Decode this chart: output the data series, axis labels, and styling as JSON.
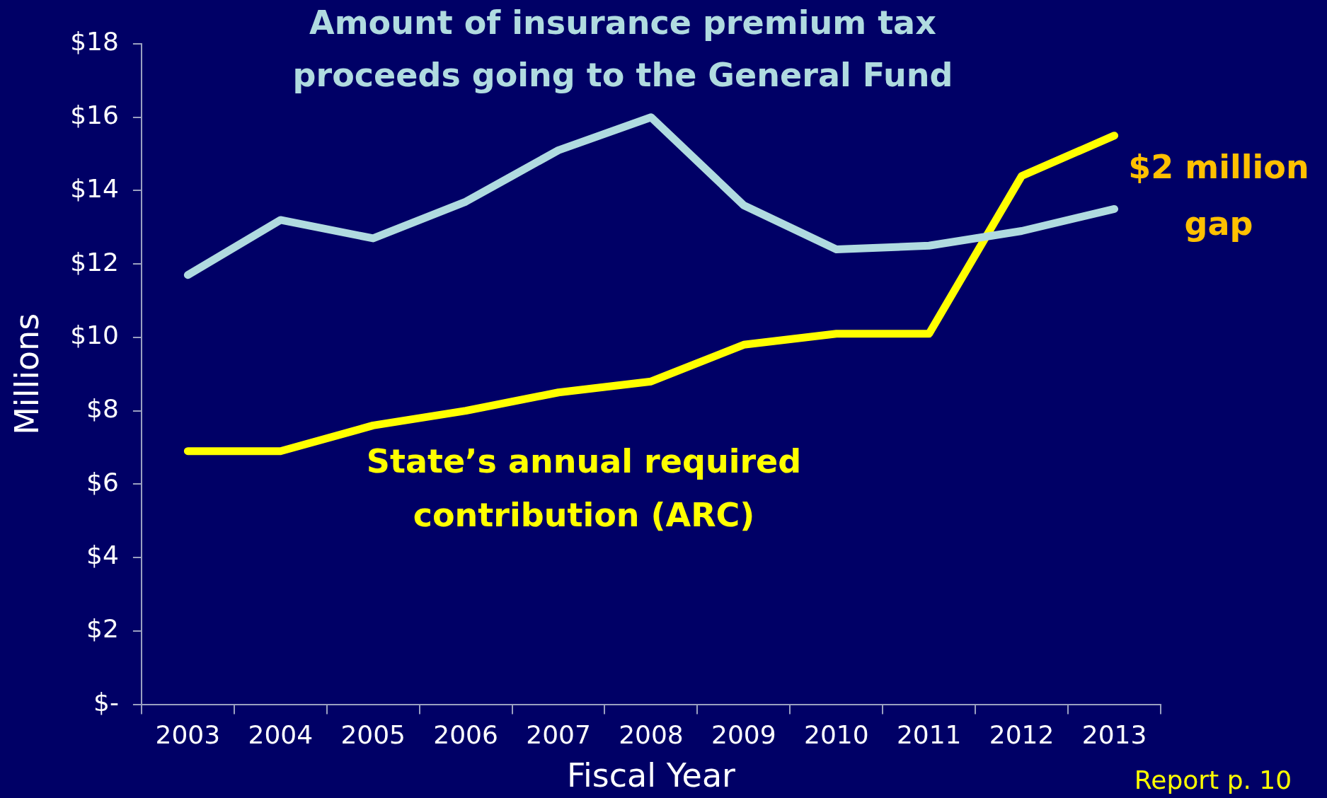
{
  "chart_data": {
    "type": "line",
    "xlabel": "Fiscal Year",
    "ylabel": "Millions",
    "categories": [
      "2003",
      "2004",
      "2005",
      "2006",
      "2007",
      "2008",
      "2009",
      "2010",
      "2011",
      "2012",
      "2013"
    ],
    "series": [
      {
        "name": "Amount of insurance premium tax proceeds going to the General Fund",
        "color": "#b0dbe0",
        "values": [
          11.7,
          13.2,
          12.7,
          13.7,
          15.1,
          16.0,
          13.6,
          12.4,
          12.5,
          12.9,
          13.5
        ]
      },
      {
        "name": "State’s annual required contribution (ARC)",
        "color": "#ffff00",
        "values": [
          6.9,
          6.9,
          7.6,
          8.0,
          8.5,
          8.8,
          9.8,
          10.1,
          10.1,
          14.4,
          15.5
        ]
      }
    ],
    "ylim": [
      0,
      18
    ],
    "yticks": [
      {
        "value": 0,
        "label": "$-"
      },
      {
        "value": 2,
        "label": "$2"
      },
      {
        "value": 4,
        "label": "$4"
      },
      {
        "value": 6,
        "label": "$6"
      },
      {
        "value": 8,
        "label": "$8"
      },
      {
        "value": 10,
        "label": "$10"
      },
      {
        "value": 12,
        "label": "$12"
      },
      {
        "value": 14,
        "label": "$14"
      },
      {
        "value": 16,
        "label": "$16"
      },
      {
        "value": 18,
        "label": "$18"
      }
    ],
    "annotations": [
      "$2 million gap",
      "Report p. 10"
    ],
    "grid": false,
    "marker": "none",
    "line_style": "solid"
  }
}
